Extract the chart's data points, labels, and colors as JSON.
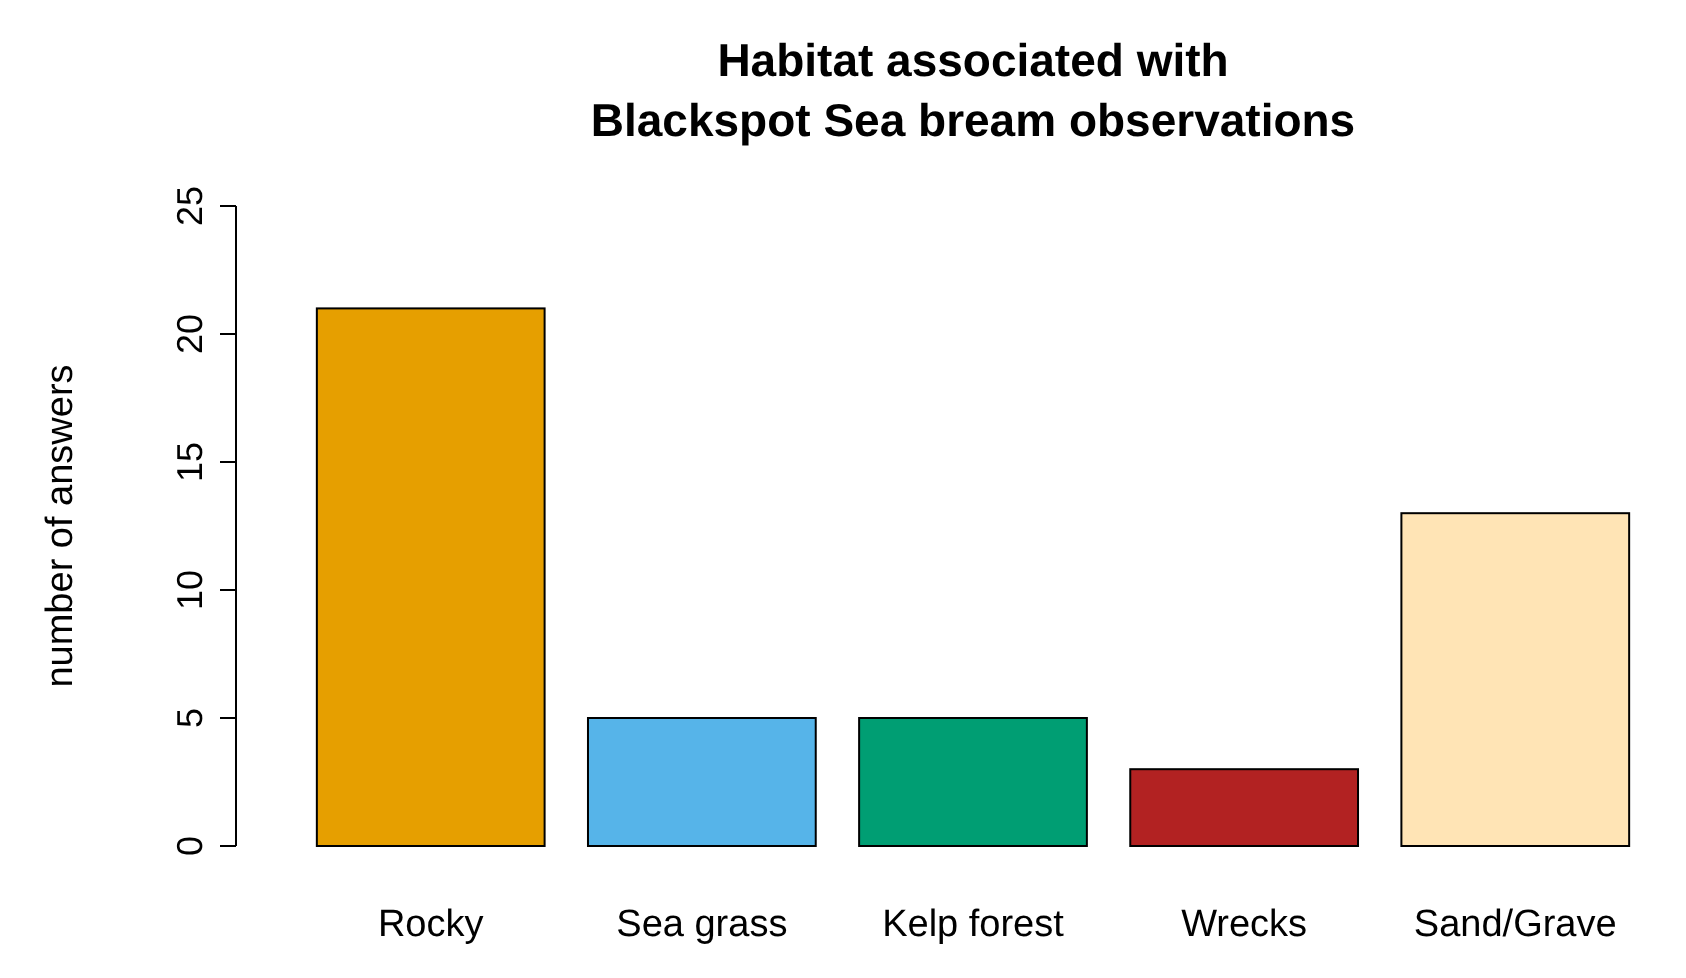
{
  "chart_data": {
    "type": "bar",
    "title": "Habitat associated with\nBlackspot Sea bream observations",
    "ylabel": "number of answers",
    "categories": [
      "Rocky",
      "Sea grass",
      "Kelp forest",
      "Wrecks",
      "Sand/Grave"
    ],
    "values": [
      21,
      5,
      5,
      3,
      13
    ],
    "colors": [
      "#e69f00",
      "#56b4e9",
      "#009e73",
      "#b22222",
      "#ffe4b5"
    ],
    "ylim": [
      0,
      25
    ],
    "yticks": [
      0,
      5,
      10,
      15,
      20,
      25
    ],
    "grid": false
  }
}
